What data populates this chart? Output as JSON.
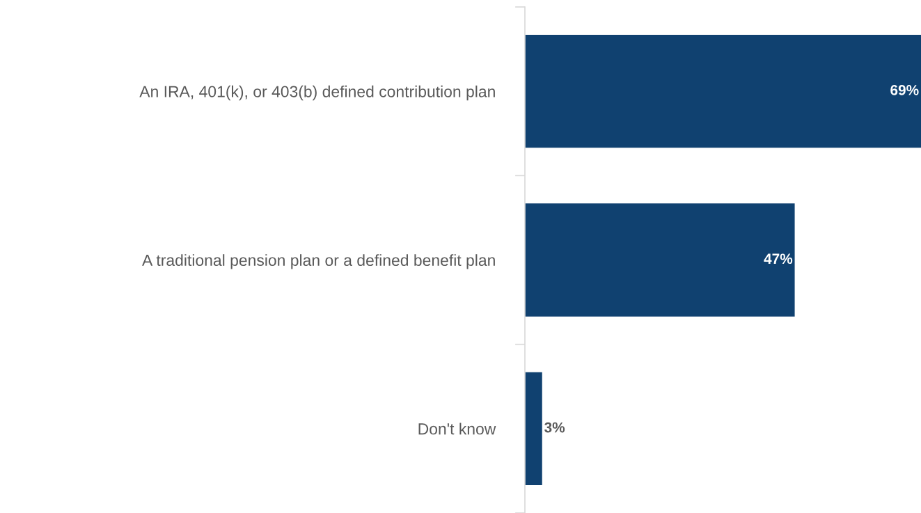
{
  "chart_data": {
    "type": "bar",
    "orientation": "horizontal",
    "categories": [
      "An IRA, 401(k), or 403(b) defined contribution plan",
      "A traditional pension plan or a defined benefit plan",
      "Don't know"
    ],
    "values": [
      69,
      47,
      3
    ],
    "value_labels": [
      "69%",
      "47%",
      "3%"
    ],
    "color": "#104170",
    "xlim": [
      0,
      69
    ],
    "tick_labels": "y",
    "grid": false,
    "legend": false
  }
}
